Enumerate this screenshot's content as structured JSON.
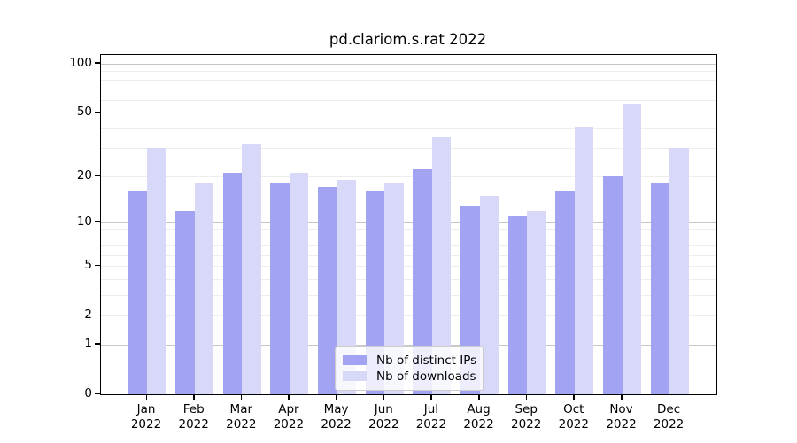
{
  "chart_data": {
    "type": "bar",
    "title": "pd.clariom.s.rat 2022",
    "categories": [
      "Jan",
      "Feb",
      "Mar",
      "Apr",
      "May",
      "Jun",
      "Jul",
      "Aug",
      "Sep",
      "Oct",
      "Nov",
      "Dec"
    ],
    "year_line": "2022",
    "series": [
      {
        "name": "Nb of distinct IPs",
        "key": "distinct-ips",
        "color": "#a3a3f3",
        "values": [
          16,
          12,
          21,
          18,
          17,
          16,
          22,
          13,
          11,
          16,
          20,
          18
        ]
      },
      {
        "name": "Nb of downloads",
        "key": "downloads",
        "color": "#d8d8f8",
        "values": [
          30,
          18,
          32,
          21,
          19,
          18,
          35,
          15,
          12,
          41,
          57,
          30
        ]
      }
    ],
    "xlabel": "",
    "ylabel": "",
    "y_scale": "log1p",
    "ylim": [
      0,
      113
    ],
    "y_ticks": [
      100,
      50,
      20,
      10,
      5,
      2,
      1,
      0
    ],
    "y_gridlines_minor": [
      2,
      3,
      4,
      5,
      6,
      7,
      8,
      9,
      20,
      30,
      40,
      50,
      60,
      70,
      80,
      90
    ],
    "y_gridlines_major": [
      1,
      10,
      100
    ],
    "grid": "on",
    "legend_position": "lower center"
  }
}
